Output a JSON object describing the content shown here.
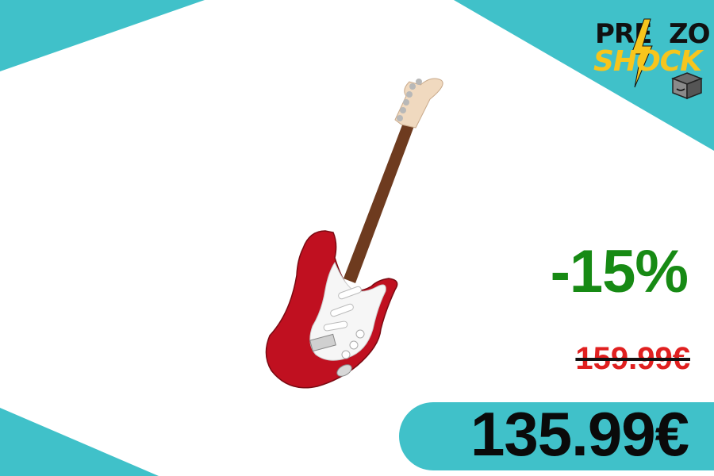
{
  "brand": {
    "logo_top": "PRE  ZO",
    "logo_bottom": "SHOCK",
    "accent_color": "#40c1c9",
    "logo_yellow": "#f7c51d",
    "icons": [
      "lightning-bolt-icon",
      "amazon-box-icon"
    ]
  },
  "product": {
    "image": "red-electric-guitar"
  },
  "pricing": {
    "discount": "-15%",
    "old_price": "159.99€",
    "new_price": "135.99€",
    "discount_color": "#178a14",
    "old_price_color": "#e02020"
  }
}
